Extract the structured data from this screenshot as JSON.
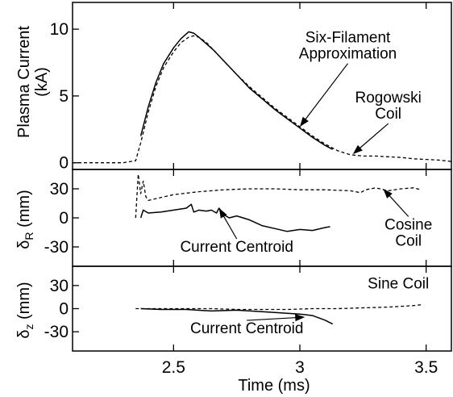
{
  "chart_data": [
    {
      "type": "line",
      "ylabel_lines": [
        "Plasma Current",
        "(kA)"
      ],
      "xlim": [
        2.1,
        3.6
      ],
      "ylim": [
        -0.5,
        12
      ],
      "yticks": [
        0,
        5,
        10
      ],
      "series": [
        {
          "name": "Six-Filament Approximation",
          "style": "solid",
          "x": [
            2.37,
            2.4,
            2.43,
            2.46,
            2.5,
            2.53,
            2.56,
            2.58,
            2.6,
            2.63,
            2.66,
            2.7,
            2.75,
            2.8,
            2.85,
            2.9,
            2.95,
            3.0,
            3.05,
            3.1,
            3.13
          ],
          "y": [
            2.0,
            4.2,
            6.0,
            7.4,
            8.6,
            9.3,
            9.8,
            9.7,
            9.4,
            8.9,
            8.4,
            7.6,
            6.6,
            5.6,
            4.8,
            4.0,
            3.3,
            2.6,
            1.9,
            1.3,
            1.0
          ]
        },
        {
          "name": "Rogowski Coil",
          "style": "dashed",
          "x": [
            2.1,
            2.2,
            2.3,
            2.35,
            2.37,
            2.4,
            2.43,
            2.46,
            2.5,
            2.53,
            2.56,
            2.58,
            2.6,
            2.63,
            2.66,
            2.7,
            2.75,
            2.8,
            2.85,
            2.9,
            2.95,
            3.0,
            3.05,
            3.1,
            3.15,
            3.2,
            3.25,
            3.3,
            3.35,
            3.4,
            3.45,
            3.5,
            3.55,
            3.6
          ],
          "y": [
            0.0,
            0.0,
            0.0,
            0.15,
            1.5,
            3.8,
            5.7,
            7.1,
            8.3,
            9.0,
            9.4,
            9.5,
            9.4,
            9.0,
            8.4,
            7.6,
            6.6,
            5.7,
            4.9,
            4.1,
            3.4,
            2.7,
            2.0,
            1.4,
            0.9,
            0.6,
            0.5,
            0.5,
            0.45,
            0.4,
            0.3,
            0.25,
            0.2,
            0.1
          ]
        }
      ],
      "annotations": [
        {
          "lines": [
            "Six-Filament",
            "Approximation"
          ],
          "x": 3.19,
          "y": 9.0,
          "arrow_to": [
            3.0,
            2.7
          ]
        },
        {
          "lines": [
            "Rogowski",
            "Coil"
          ],
          "x": 3.35,
          "y": 4.5,
          "arrow_to": [
            3.21,
            0.65
          ]
        }
      ]
    },
    {
      "type": "line",
      "ylabel_main": "δ",
      "ylabel_sub": "R",
      "ylabel_unit": "(mm)",
      "xlim": [
        2.1,
        3.6
      ],
      "ylim": [
        -50,
        50
      ],
      "yticks": [
        -30,
        0,
        30
      ],
      "series": [
        {
          "name": "Current Centroid",
          "style": "solid",
          "x": [
            2.37,
            2.38,
            2.4,
            2.45,
            2.5,
            2.55,
            2.57,
            2.58,
            2.6,
            2.63,
            2.65,
            2.67,
            2.68,
            2.7,
            2.72,
            2.75,
            2.8,
            2.85,
            2.9,
            2.95,
            3.0,
            3.05,
            3.1,
            3.12
          ],
          "y": [
            0,
            8,
            5,
            6,
            8,
            10,
            14,
            6,
            8,
            7,
            8,
            5,
            10,
            3,
            0,
            2,
            -2,
            -8,
            -11,
            -14,
            -12,
            -13,
            -10,
            -9
          ]
        },
        {
          "name": "Cosine Coil",
          "style": "dashed",
          "x": [
            2.35,
            2.36,
            2.37,
            2.38,
            2.39,
            2.4,
            2.45,
            2.5,
            2.6,
            2.7,
            2.8,
            2.9,
            3.0,
            3.1,
            3.2,
            3.24,
            3.26,
            3.3,
            3.35,
            3.4,
            3.45,
            3.48
          ],
          "y": [
            0,
            45,
            25,
            38,
            22,
            18,
            21,
            24,
            27,
            29,
            30,
            30,
            29,
            29,
            28,
            26,
            29,
            31,
            28,
            30,
            31,
            29
          ]
        }
      ],
      "annotations": [
        {
          "lines": [
            "Current Centroid"
          ],
          "x": 2.75,
          "y": -35,
          "arrow_to": [
            2.68,
            10
          ]
        },
        {
          "lines": [
            "Cosine",
            "Coil"
          ],
          "x": 3.43,
          "y": -12,
          "arrow_to": [
            3.33,
            30
          ]
        }
      ]
    },
    {
      "type": "line",
      "ylabel_main": "δ",
      "ylabel_sub": "z",
      "ylabel_unit": "(mm)",
      "xlim": [
        2.1,
        3.6
      ],
      "ylim": [
        -55,
        55
      ],
      "yticks": [
        -30,
        0,
        30
      ],
      "xticks": [
        2.5,
        3,
        3.5
      ],
      "xtick_labels": [
        "2.5",
        "3",
        "3.5"
      ],
      "xlabel": "Time  (ms)",
      "series": [
        {
          "name": "Current Centroid",
          "style": "solid",
          "x": [
            2.37,
            2.45,
            2.55,
            2.65,
            2.75,
            2.85,
            2.95,
            3.0,
            3.05,
            3.1,
            3.13
          ],
          "y": [
            0,
            -1,
            -1,
            -3,
            -2,
            -4,
            -6,
            -7,
            -9,
            -15,
            -20
          ]
        },
        {
          "name": "Sine Coil",
          "style": "dashed",
          "x": [
            2.35,
            2.45,
            2.55,
            2.65,
            2.75,
            2.85,
            2.95,
            3.05,
            3.15,
            3.25,
            3.35,
            3.45,
            3.48
          ],
          "y": [
            0,
            0,
            0,
            0,
            -1,
            -1,
            -1,
            0,
            0,
            1,
            2,
            4,
            5
          ]
        }
      ],
      "annotations": [
        {
          "lines": [
            "Sine Coil"
          ],
          "x": 3.39,
          "y": 26
        },
        {
          "lines": [
            "Current Centroid"
          ],
          "x": 2.79,
          "y": -32,
          "arrow_to": [
            3.02,
            -11
          ]
        }
      ]
    }
  ]
}
